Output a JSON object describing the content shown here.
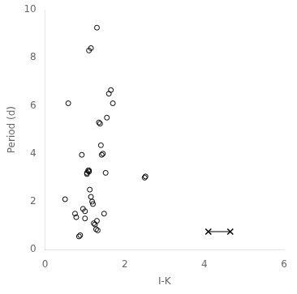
{
  "chart_data": {
    "type": "scatter",
    "xlabel": "I-K",
    "ylabel": "Period (d)",
    "xlim": [
      0,
      6
    ],
    "ylim": [
      0,
      10
    ],
    "xticks": [
      0,
      2,
      4,
      6
    ],
    "yticks": [
      0,
      2,
      4,
      6,
      8,
      10
    ],
    "grid": false,
    "series": [
      {
        "x": [
          0.5,
          0.75,
          0.78,
          0.85,
          0.88,
          0.92,
          0.95,
          1.0,
          1.0,
          1.05,
          1.05,
          1.08,
          1.1,
          1.1,
          1.12,
          1.15,
          1.18,
          1.2,
          1.22,
          1.25,
          1.28,
          1.3,
          1.32,
          1.35,
          1.38,
          1.4,
          1.42,
          1.45,
          1.48,
          1.52,
          1.55,
          1.6,
          1.65,
          1.7,
          2.5,
          2.52,
          0.58
        ],
        "values": [
          2.1,
          1.5,
          1.35,
          0.55,
          0.6,
          3.95,
          1.7,
          1.6,
          1.3,
          3.2,
          3.15,
          3.3,
          3.25,
          3.3,
          2.5,
          2.2,
          2.0,
          1.9,
          1.1,
          1.05,
          0.85,
          1.2,
          0.8,
          5.3,
          5.25,
          4.35,
          3.95,
          4.0,
          1.5,
          3.2,
          5.5,
          6.5,
          6.65,
          6.1,
          3.0,
          3.05,
          6.1
        ],
        "color": "black",
        "marker": "circle"
      },
      {
        "x": [
          1.1,
          1.15,
          1.3
        ],
        "values": [
          8.3,
          8.4,
          9.25
        ],
        "color": "black",
        "marker": "circle"
      },
      {
        "type": "line",
        "x": [
          4.1,
          4.65
        ],
        "values": [
          0.75,
          0.75
        ],
        "color": "black",
        "marker": "x"
      }
    ]
  }
}
